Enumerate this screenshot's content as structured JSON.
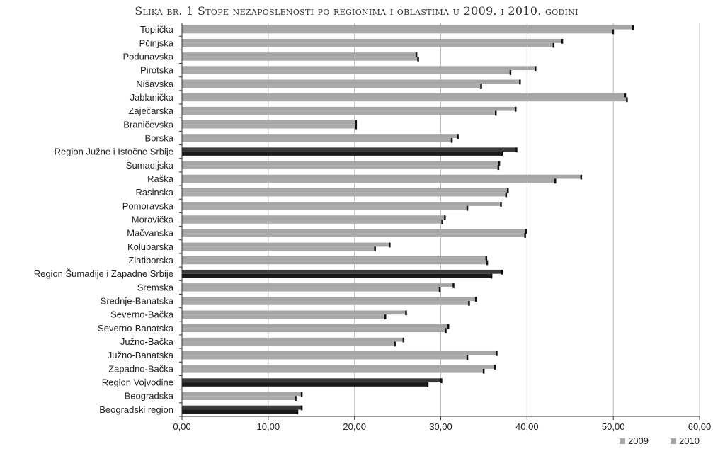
{
  "chart_data": {
    "type": "bar",
    "orientation": "horizontal",
    "title": "Slika br. 1 Stope nezaposlenosti po regionima i oblastima u 2009. i 2010. godini",
    "categories": [
      "Toplička",
      "Pčinjska",
      "Podunavska",
      "Pirotska",
      "Nišavska",
      "Jablanička",
      "Zaječarska",
      "Braničevska",
      "Borska",
      "Region Južne i Istočne Srbije",
      "Šumadijska",
      "Raška",
      "Rasinska",
      "Pomoravska",
      "Moravička",
      "Mačvanska",
      "Kolubarska",
      "Zlatiborska",
      "Region Šumadije i Zapadne Srbije",
      "Sremska",
      "Srednje-Banatska",
      "Severno-Bačka",
      "Severno-Banatska",
      "Južno-Bačka",
      "Južno-Banatska",
      "Zapadno-Bačka",
      "Region Vojvodine",
      "Beogradska",
      "Beogradski region"
    ],
    "region_categories": [
      "Region Južne i Istočne Srbije",
      "Region Šumadije i Zapadne Srbije",
      "Region Vojvodine",
      "Beogradski region"
    ],
    "series": [
      {
        "name": "2009",
        "values": [
          50.0,
          43.1,
          27.4,
          38.1,
          34.7,
          51.6,
          36.4,
          20.2,
          31.3,
          37.1,
          36.7,
          43.3,
          37.6,
          33.1,
          30.2,
          39.8,
          22.4,
          35.4,
          35.9,
          29.9,
          33.3,
          23.6,
          30.6,
          24.7,
          33.1,
          35.0,
          28.5,
          13.2,
          13.4
        ]
      },
      {
        "name": "2010",
        "values": [
          52.3,
          44.1,
          27.2,
          41.0,
          39.2,
          51.4,
          38.7,
          20.2,
          32.0,
          38.8,
          36.8,
          46.3,
          37.8,
          37.0,
          30.5,
          39.9,
          24.1,
          35.3,
          37.1,
          31.5,
          34.1,
          26.0,
          30.9,
          25.7,
          36.5,
          36.3,
          30.1,
          13.9,
          13.9
        ]
      }
    ],
    "xlim": [
      0,
      60
    ],
    "xticks": [
      "0,00",
      "10,00",
      "20,00",
      "30,00",
      "40,00",
      "50,00",
      "60,00"
    ],
    "grid": "vertical",
    "legend_position": "bottom-right",
    "colors": {
      "2009": "#aaaaaa",
      "2010": "#a6a6a6",
      "region_2009": "#1a1a1a",
      "region_2010": "#3a3a3a",
      "marker": "#111111",
      "grid": "#bdbdbd",
      "axis": "#333333",
      "text": "#222222"
    }
  }
}
